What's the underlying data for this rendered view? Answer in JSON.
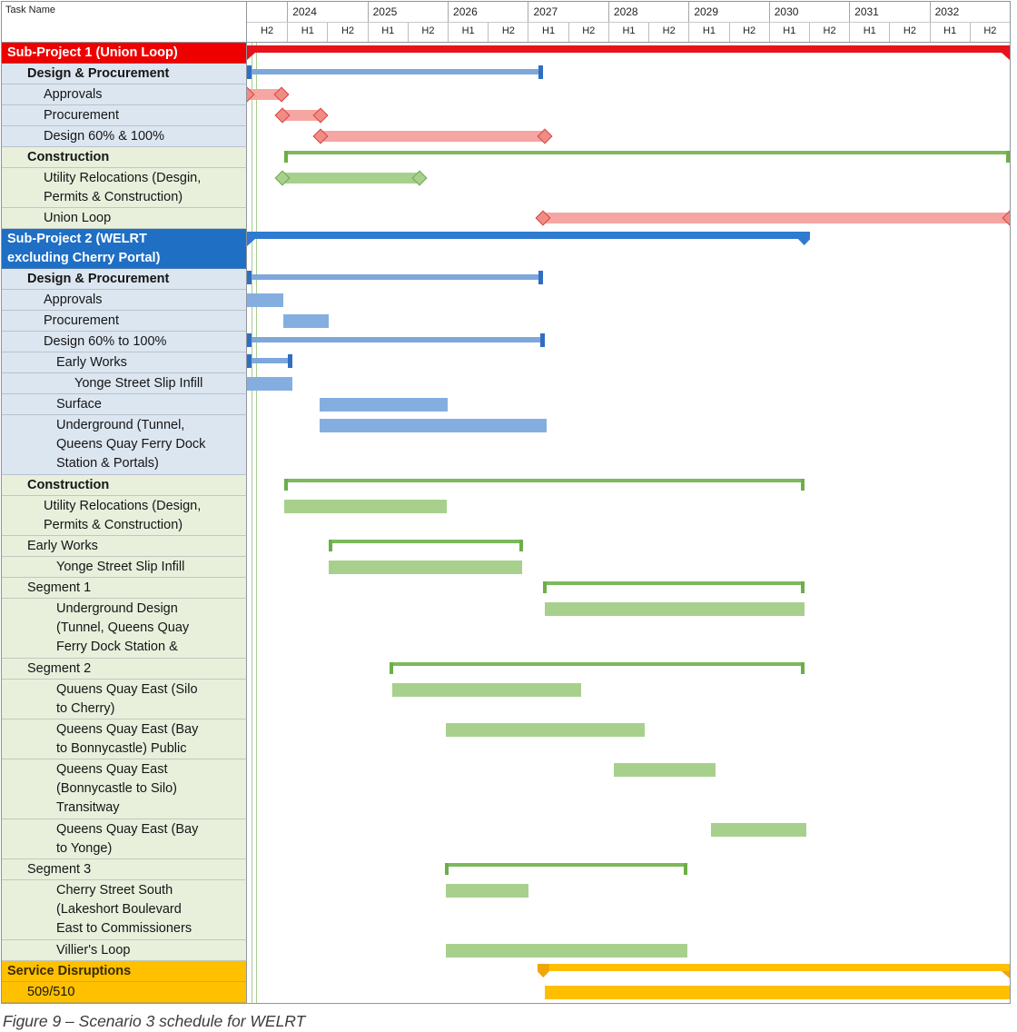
{
  "header": {
    "task_name_label": "Task Name",
    "first_half": "H2",
    "years": [
      "2024",
      "2025",
      "2026",
      "2027",
      "2028",
      "2029",
      "2030",
      "2031",
      "2032"
    ],
    "half_labels": [
      "H1",
      "H2"
    ]
  },
  "caption": "Figure 9 – Scenario 3 schedule for WELRT",
  "colors": {
    "red_header_bg": "#EE0000",
    "blue_header_bg": "#1F6FC5",
    "blue_row_bg": "#DCE6F1",
    "green_row_bg": "#E8F0DC",
    "orange_row_bg": "#FFC000",
    "red_strong": "#E8121A",
    "salmon": "#F5A6A2",
    "red_diamond_fill": "#EF8C86",
    "red_diamond_border": "#D6453C",
    "lightblue": "#85AEE0",
    "lightblue_line": "#7EA7DC",
    "blue_cap": "#2F6FC1",
    "blue_strong": "#2F7BD0",
    "green": "#A8D08D",
    "green_diamond_border": "#6FA84C",
    "green_bracket": "#7DB95B",
    "green_bracket_tick": "#6CAE48",
    "orange": "#FFBF00",
    "orange_dark": "#F0A500",
    "status_line": "#A9CE91",
    "orange_header_text": "#3A2B00"
  },
  "chart_data": {
    "type": "gantt",
    "title": "Figure 9 – Scenario 3 schedule for WELRT",
    "time_axis": {
      "start": 2023.5,
      "end": 2033.0,
      "unit": "half-year columns",
      "first_column_label": "H2",
      "years": [
        2024,
        2025,
        2026,
        2027,
        2028,
        2029,
        2030,
        2031,
        2032
      ]
    },
    "tasks": [
      {
        "name": "Sub-Project 1 (Union Loop)",
        "level": 0,
        "bold": true,
        "bg": "red",
        "text": "white",
        "lines": 1,
        "bar": {
          "style": "project-summary",
          "color": "red",
          "start": 2023.5,
          "end": 2033.0
        }
      },
      {
        "name": "Design & Procurement",
        "level": 1,
        "bold": true,
        "bg": "blue",
        "lines": 1,
        "bar": {
          "style": "summary-caps",
          "start": 2023.5,
          "end": 2027.19
        }
      },
      {
        "name": "Approvals",
        "level": 2,
        "bg": "blue",
        "lines": 1,
        "bar": {
          "style": "msbar",
          "color": "red",
          "start": 2023.5,
          "end": 2023.94
        }
      },
      {
        "name": "Procurement",
        "level": 2,
        "bg": "blue",
        "lines": 1,
        "bar": {
          "style": "msbar",
          "color": "red",
          "start": 2023.95,
          "end": 2024.42
        }
      },
      {
        "name": "Design 60% & 100%",
        "level": 2,
        "bg": "blue",
        "lines": 1,
        "bar": {
          "style": "msbar",
          "color": "red",
          "start": 2024.42,
          "end": 2027.21
        }
      },
      {
        "name": "Construction",
        "level": 1,
        "bold": true,
        "bg": "green",
        "lines": 1,
        "bar": {
          "style": "bracket",
          "start": 2023.96,
          "end": 2033.0
        }
      },
      {
        "name": "Utility Relocations (Desgin,\nPermits & Construction)",
        "level": 2,
        "bg": "green",
        "lines": 2,
        "bar": {
          "style": "msbar",
          "color": "green",
          "start": 2023.95,
          "end": 2025.65
        }
      },
      {
        "name": "Union Loop",
        "level": 2,
        "bg": "green",
        "lines": 1,
        "bar": {
          "style": "msbar",
          "color": "red",
          "start": 2027.19,
          "end": 2033.0
        }
      },
      {
        "name": "Sub-Project 2 (WELRT\nexcluding Cherry Portal)",
        "level": 0,
        "bold": true,
        "bg": "blueheader",
        "text": "white",
        "lines": 2,
        "bar": {
          "style": "project-summary-pentagon",
          "color": "blue",
          "start": 2023.5,
          "end": 2030.44
        }
      },
      {
        "name": "Design & Procurement",
        "level": 1,
        "bold": true,
        "bg": "blue",
        "lines": 1,
        "bar": {
          "style": "summary-caps",
          "start": 2023.5,
          "end": 2027.19
        }
      },
      {
        "name": "Approvals",
        "level": 2,
        "bg": "blue",
        "lines": 1,
        "bar": {
          "style": "bar",
          "color": "lightblue",
          "start": 2023.5,
          "end": 2023.95
        }
      },
      {
        "name": "Procurement",
        "level": 2,
        "bg": "blue",
        "lines": 1,
        "bar": {
          "style": "bar",
          "color": "lightblue",
          "start": 2023.95,
          "end": 2024.52
        }
      },
      {
        "name": "Design 60% to 100%",
        "level": 2,
        "bg": "blue",
        "lines": 1,
        "bar": {
          "style": "summary-caps",
          "start": 2023.5,
          "end": 2027.21
        }
      },
      {
        "name": "Early Works",
        "level": 3,
        "bg": "blue",
        "lines": 1,
        "bar": {
          "style": "summary-caps",
          "start": 2023.5,
          "end": 2024.07
        }
      },
      {
        "name": "Yonge Street Slip Infill",
        "level": 4,
        "bg": "blue",
        "lines": 1,
        "bar": {
          "style": "bar",
          "color": "lightblue",
          "start": 2023.5,
          "end": 2024.07
        }
      },
      {
        "name": "Surface",
        "level": 3,
        "bg": "blue",
        "lines": 1,
        "bar": {
          "style": "bar",
          "color": "lightblue",
          "start": 2024.4,
          "end": 2026.0
        }
      },
      {
        "name": "Underground (Tunnel,\nQueens Quay Ferry Dock\nStation & Portals)",
        "level": 3,
        "bg": "blue",
        "lines": 3,
        "bar": {
          "style": "bar",
          "color": "lightblue",
          "start": 2024.4,
          "end": 2027.23
        }
      },
      {
        "name": "Construction",
        "level": 1,
        "bold": true,
        "bg": "green",
        "lines": 1,
        "bar": {
          "style": "bracket",
          "start": 2023.96,
          "end": 2030.44
        }
      },
      {
        "name": "Utility Relocations (Design,\nPermits & Construction)",
        "level": 2,
        "bg": "green",
        "lines": 2,
        "bar": {
          "style": "bar",
          "color": "green",
          "start": 2023.96,
          "end": 2025.99
        }
      },
      {
        "name": "Early Works",
        "level": 1,
        "bg": "green",
        "lines": 1,
        "bar": {
          "style": "bracket",
          "start": 2024.52,
          "end": 2026.94
        }
      },
      {
        "name": "Yonge Street Slip Infill",
        "level": 3,
        "bg": "green",
        "lines": 1,
        "bar": {
          "style": "bar",
          "color": "green",
          "start": 2024.52,
          "end": 2026.93
        }
      },
      {
        "name": "Segment 1",
        "level": 1,
        "bg": "green",
        "lines": 1,
        "bar": {
          "style": "bracket",
          "start": 2027.19,
          "end": 2030.44
        }
      },
      {
        "name": "Underground Design\n(Tunnel, Queens Quay\nFerry Dock Station &",
        "level": 3,
        "bg": "green",
        "lines": 3,
        "bar": {
          "style": "bar",
          "color": "green",
          "start": 2027.21,
          "end": 2030.44
        }
      },
      {
        "name": "Segment 2",
        "level": 1,
        "bg": "green",
        "lines": 1,
        "bar": {
          "style": "bracket",
          "start": 2025.28,
          "end": 2030.44
        }
      },
      {
        "name": "Quuens Quay East (Silo\nto Cherry)",
        "level": 3,
        "bg": "green",
        "lines": 2,
        "bar": {
          "style": "bar",
          "color": "green",
          "start": 2025.31,
          "end": 2027.66
        }
      },
      {
        "name": "Queens Quay East (Bay\nto Bonnycastle) Public",
        "level": 3,
        "bg": "green",
        "lines": 2,
        "bar": {
          "style": "bar",
          "color": "green",
          "start": 2025.98,
          "end": 2028.45
        }
      },
      {
        "name": "Queens Quay East\n(Bonnycastle to Silo)\nTransitway",
        "level": 3,
        "bg": "green",
        "lines": 3,
        "bar": {
          "style": "bar",
          "color": "green",
          "start": 2028.07,
          "end": 2029.34
        }
      },
      {
        "name": "Queens Quay East (Bay\nto Yonge)",
        "level": 3,
        "bg": "green",
        "lines": 2,
        "bar": {
          "style": "bar",
          "color": "green",
          "start": 2029.28,
          "end": 2030.47
        }
      },
      {
        "name": "Segment 3",
        "level": 1,
        "bg": "green",
        "lines": 1,
        "bar": {
          "style": "bracket",
          "start": 2025.97,
          "end": 2028.99
        }
      },
      {
        "name": "Cherry Street South\n(Lakeshort Boulevard\nEast to Commissioners",
        "level": 3,
        "bg": "green",
        "lines": 3,
        "bar": {
          "style": "bar",
          "color": "green",
          "start": 2025.98,
          "end": 2027.01
        }
      },
      {
        "name": "Villier's Loop",
        "level": 3,
        "bg": "green",
        "lines": 1,
        "bar": {
          "style": "bar",
          "color": "green",
          "start": 2025.98,
          "end": 2028.99
        }
      },
      {
        "name": "Service Disruptions",
        "level": 0,
        "bold": true,
        "bg": "orange",
        "text": "orangeheader",
        "lines": 1,
        "bar": {
          "style": "disruption-summary",
          "color": "orange",
          "start": 2027.19,
          "end": 2033.0
        }
      },
      {
        "name": "509/510",
        "level": 1,
        "bg": "orange",
        "lines": 1,
        "bar": {
          "style": "bar",
          "color": "orange",
          "start": 2027.21,
          "end": 2033.0
        }
      }
    ]
  }
}
